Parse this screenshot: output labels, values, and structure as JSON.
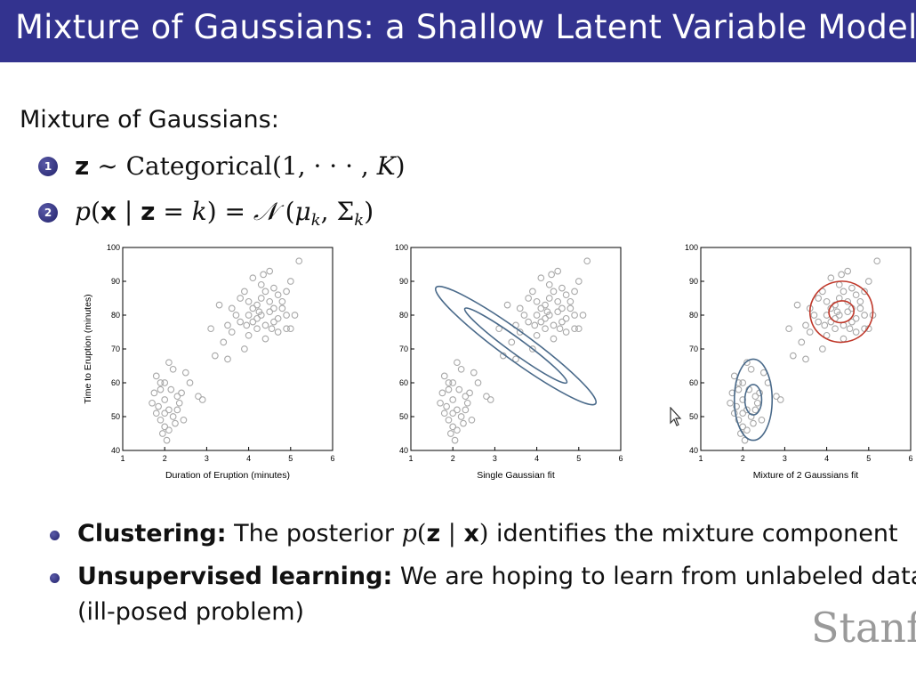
{
  "slide": {
    "title": "Mixture of Gaussians: a Shallow Latent Variable Model",
    "section_label": "Mixture of Gaussians:",
    "enum_items": [
      {
        "number": "1",
        "z": "z",
        "sim": " ∼ ",
        "text": "Categorical(1, · · · , ",
        "K": "K",
        "close": ")"
      },
      {
        "number": "2",
        "p": "p",
        "open": "(",
        "x": "x",
        "bar": " | ",
        "z": "z",
        "eq": " = ",
        "k": "k",
        "close1": ") = ",
        "N": "𝒩",
        "paren": " (",
        "mu": "μ",
        "sub_k1": "k",
        "comma": ", Σ",
        "sub_k2": "k",
        "close2": ")"
      }
    ],
    "bullets": [
      {
        "label": "Clustering:",
        "pre": " The posterior ",
        "p": "p",
        "open": "(",
        "z": "z",
        "bar": " | ",
        "x": "x",
        "close": ")",
        "post": " identifies the mixture component"
      },
      {
        "label": "Unsupervised learning:",
        "post": " We are hoping to learn from unlabeled data",
        "line2": "(ill-posed problem)"
      }
    ],
    "watermark": "Stanf",
    "colors": {
      "title_bar": "#33338f",
      "point": "#a8a8a8",
      "blue_ellipse": "#4a6a8a",
      "red_ellipse": "#c0392b"
    }
  },
  "chart_data": [
    {
      "type": "scatter",
      "xlabel": "Duration of Eruption (minutes)",
      "ylabel": "Time to Eruption (minutes)",
      "xlim": [
        1,
        6
      ],
      "ylim": [
        40,
        100
      ],
      "xticks": [
        "1",
        "2",
        "3",
        "4",
        "5",
        "6"
      ],
      "yticks": [
        "40",
        "50",
        "60",
        "70",
        "80",
        "90",
        "100"
      ],
      "grid": false,
      "points": [
        [
          1.8,
          62
        ],
        [
          1.9,
          58
        ],
        [
          2.0,
          55
        ],
        [
          2.1,
          52
        ],
        [
          1.8,
          51
        ],
        [
          2.2,
          50
        ],
        [
          1.9,
          49
        ],
        [
          2.0,
          47
        ],
        [
          2.1,
          46
        ],
        [
          1.7,
          54
        ],
        [
          2.3,
          56
        ],
        [
          2.0,
          60
        ],
        [
          1.85,
          53
        ],
        [
          2.15,
          58
        ],
        [
          2.25,
          48
        ],
        [
          2.4,
          57
        ],
        [
          1.95,
          45
        ],
        [
          2.05,
          43
        ],
        [
          2.3,
          52
        ],
        [
          1.75,
          57
        ],
        [
          2.6,
          60
        ],
        [
          2.5,
          63
        ],
        [
          2.2,
          64
        ],
        [
          2.1,
          66
        ],
        [
          2.35,
          54
        ],
        [
          2.8,
          56
        ],
        [
          2.9,
          55
        ],
        [
          2.45,
          49
        ],
        [
          2.0,
          51
        ],
        [
          1.9,
          60
        ],
        [
          3.2,
          68
        ],
        [
          3.4,
          72
        ],
        [
          3.5,
          67
        ],
        [
          3.6,
          75
        ],
        [
          3.1,
          76
        ],
        [
          3.3,
          83
        ],
        [
          3.7,
          80
        ],
        [
          3.8,
          78
        ],
        [
          3.9,
          70
        ],
        [
          4.0,
          74
        ],
        [
          4.1,
          82
        ],
        [
          4.2,
          79
        ],
        [
          4.3,
          85
        ],
        [
          4.4,
          77
        ],
        [
          4.5,
          81
        ],
        [
          4.6,
          88
        ],
        [
          4.7,
          79
        ],
        [
          4.8,
          84
        ],
        [
          4.9,
          76
        ],
        [
          5.0,
          90
        ],
        [
          4.1,
          91
        ],
        [
          4.3,
          89
        ],
        [
          4.5,
          93
        ],
        [
          4.7,
          86
        ],
        [
          3.9,
          87
        ],
        [
          4.0,
          84
        ],
        [
          4.2,
          76
        ],
        [
          4.4,
          73
        ],
        [
          4.6,
          78
        ],
        [
          4.8,
          82
        ],
        [
          5.1,
          80
        ],
        [
          5.2,
          96
        ],
        [
          4.9,
          87
        ],
        [
          4.5,
          84
        ],
        [
          4.3,
          80
        ],
        [
          4.1,
          78
        ],
        [
          3.8,
          85
        ],
        [
          4.6,
          82
        ],
        [
          4.4,
          87
        ],
        [
          4.2,
          83
        ],
        [
          4.0,
          80
        ],
        [
          3.6,
          82
        ],
        [
          3.5,
          77
        ],
        [
          4.7,
          75
        ],
        [
          4.9,
          80
        ],
        [
          5.0,
          76
        ],
        [
          4.25,
          81
        ],
        [
          4.55,
          76
        ],
        [
          4.35,
          92
        ],
        [
          3.95,
          77
        ]
      ],
      "ellipses": []
    },
    {
      "type": "scatter",
      "xlabel": "Single Gaussian fit",
      "ylabel": "",
      "xlim": [
        1,
        6
      ],
      "ylim": [
        40,
        100
      ],
      "xticks": [
        "1",
        "2",
        "3",
        "4",
        "5",
        "6"
      ],
      "yticks": [
        "40",
        "50",
        "60",
        "70",
        "80",
        "90",
        "100"
      ],
      "grid": false,
      "points": [
        [
          1.8,
          62
        ],
        [
          1.9,
          58
        ],
        [
          2.0,
          55
        ],
        [
          2.1,
          52
        ],
        [
          1.8,
          51
        ],
        [
          2.2,
          50
        ],
        [
          1.9,
          49
        ],
        [
          2.0,
          47
        ],
        [
          2.1,
          46
        ],
        [
          1.7,
          54
        ],
        [
          2.3,
          56
        ],
        [
          2.0,
          60
        ],
        [
          1.85,
          53
        ],
        [
          2.15,
          58
        ],
        [
          2.25,
          48
        ],
        [
          2.4,
          57
        ],
        [
          1.95,
          45
        ],
        [
          2.05,
          43
        ],
        [
          2.3,
          52
        ],
        [
          1.75,
          57
        ],
        [
          2.6,
          60
        ],
        [
          2.5,
          63
        ],
        [
          2.2,
          64
        ],
        [
          2.1,
          66
        ],
        [
          2.35,
          54
        ],
        [
          2.8,
          56
        ],
        [
          2.9,
          55
        ],
        [
          2.45,
          49
        ],
        [
          2.0,
          51
        ],
        [
          1.9,
          60
        ],
        [
          3.2,
          68
        ],
        [
          3.4,
          72
        ],
        [
          3.5,
          67
        ],
        [
          3.6,
          75
        ],
        [
          3.1,
          76
        ],
        [
          3.3,
          83
        ],
        [
          3.7,
          80
        ],
        [
          3.8,
          78
        ],
        [
          3.9,
          70
        ],
        [
          4.0,
          74
        ],
        [
          4.1,
          82
        ],
        [
          4.2,
          79
        ],
        [
          4.3,
          85
        ],
        [
          4.4,
          77
        ],
        [
          4.5,
          81
        ],
        [
          4.6,
          88
        ],
        [
          4.7,
          79
        ],
        [
          4.8,
          84
        ],
        [
          4.9,
          76
        ],
        [
          5.0,
          90
        ],
        [
          4.1,
          91
        ],
        [
          4.3,
          89
        ],
        [
          4.5,
          93
        ],
        [
          4.7,
          86
        ],
        [
          3.9,
          87
        ],
        [
          4.0,
          84
        ],
        [
          4.2,
          76
        ],
        [
          4.4,
          73
        ],
        [
          4.6,
          78
        ],
        [
          4.8,
          82
        ],
        [
          5.1,
          80
        ],
        [
          5.2,
          96
        ],
        [
          4.9,
          87
        ],
        [
          4.5,
          84
        ],
        [
          4.3,
          80
        ],
        [
          4.1,
          78
        ],
        [
          3.8,
          85
        ],
        [
          4.6,
          82
        ],
        [
          4.4,
          87
        ],
        [
          4.2,
          83
        ],
        [
          4.0,
          80
        ],
        [
          3.6,
          82
        ],
        [
          3.5,
          77
        ],
        [
          4.7,
          75
        ],
        [
          4.9,
          80
        ],
        [
          5.0,
          76
        ],
        [
          4.25,
          81
        ],
        [
          4.55,
          76
        ],
        [
          4.35,
          92
        ],
        [
          3.95,
          77
        ]
      ],
      "ellipses": [
        {
          "cx": 3.5,
          "cy": 71,
          "rx": 2.35,
          "ry": 4.2,
          "angle_deg": -36,
          "color": "blue"
        },
        {
          "cx": 3.5,
          "cy": 71,
          "rx": 1.5,
          "ry": 2.2,
          "angle_deg": -36,
          "color": "blue"
        }
      ]
    },
    {
      "type": "scatter",
      "xlabel": "Mixture of 2 Gaussians fit",
      "ylabel": "",
      "xlim": [
        1,
        6
      ],
      "ylim": [
        40,
        100
      ],
      "xticks": [
        "1",
        "2",
        "3",
        "4",
        "5",
        "6"
      ],
      "yticks": [
        "40",
        "50",
        "60",
        "70",
        "80",
        "90",
        "100"
      ],
      "grid": false,
      "points": [
        [
          1.8,
          62
        ],
        [
          1.9,
          58
        ],
        [
          2.0,
          55
        ],
        [
          2.1,
          52
        ],
        [
          1.8,
          51
        ],
        [
          2.2,
          50
        ],
        [
          1.9,
          49
        ],
        [
          2.0,
          47
        ],
        [
          2.1,
          46
        ],
        [
          1.7,
          54
        ],
        [
          2.3,
          56
        ],
        [
          2.0,
          60
        ],
        [
          1.85,
          53
        ],
        [
          2.15,
          58
        ],
        [
          2.25,
          48
        ],
        [
          2.4,
          57
        ],
        [
          1.95,
          45
        ],
        [
          2.05,
          43
        ],
        [
          2.3,
          52
        ],
        [
          1.75,
          57
        ],
        [
          2.6,
          60
        ],
        [
          2.5,
          63
        ],
        [
          2.2,
          64
        ],
        [
          2.1,
          66
        ],
        [
          2.35,
          54
        ],
        [
          2.8,
          56
        ],
        [
          2.9,
          55
        ],
        [
          2.45,
          49
        ],
        [
          2.0,
          51
        ],
        [
          1.9,
          60
        ],
        [
          3.2,
          68
        ],
        [
          3.4,
          72
        ],
        [
          3.5,
          67
        ],
        [
          3.6,
          75
        ],
        [
          3.1,
          76
        ],
        [
          3.3,
          83
        ],
        [
          3.7,
          80
        ],
        [
          3.8,
          78
        ],
        [
          3.9,
          70
        ],
        [
          4.0,
          74
        ],
        [
          4.1,
          82
        ],
        [
          4.2,
          79
        ],
        [
          4.3,
          85
        ],
        [
          4.4,
          77
        ],
        [
          4.5,
          81
        ],
        [
          4.6,
          88
        ],
        [
          4.7,
          79
        ],
        [
          4.8,
          84
        ],
        [
          4.9,
          76
        ],
        [
          5.0,
          90
        ],
        [
          4.1,
          91
        ],
        [
          4.3,
          89
        ],
        [
          4.5,
          93
        ],
        [
          4.7,
          86
        ],
        [
          3.9,
          87
        ],
        [
          4.0,
          84
        ],
        [
          4.2,
          76
        ],
        [
          4.4,
          73
        ],
        [
          4.6,
          78
        ],
        [
          4.8,
          82
        ],
        [
          5.1,
          80
        ],
        [
          5.2,
          96
        ],
        [
          4.9,
          87
        ],
        [
          4.5,
          84
        ],
        [
          4.3,
          80
        ],
        [
          4.1,
          78
        ],
        [
          3.8,
          85
        ],
        [
          4.6,
          82
        ],
        [
          4.4,
          87
        ],
        [
          4.2,
          83
        ],
        [
          4.0,
          80
        ],
        [
          3.6,
          82
        ],
        [
          3.5,
          77
        ],
        [
          4.7,
          75
        ],
        [
          4.9,
          80
        ],
        [
          5.0,
          76
        ],
        [
          4.25,
          81
        ],
        [
          4.55,
          76
        ],
        [
          4.35,
          92
        ],
        [
          3.95,
          77
        ]
      ],
      "ellipses": [
        {
          "cx": 2.25,
          "cy": 55,
          "rx": 0.45,
          "ry": 12,
          "angle_deg": 0,
          "color": "blue"
        },
        {
          "cx": 2.25,
          "cy": 55,
          "rx": 0.2,
          "ry": 4.5,
          "angle_deg": 0,
          "color": "blue"
        },
        {
          "cx": 4.35,
          "cy": 81,
          "rx": 0.75,
          "ry": 9,
          "angle_deg": 12,
          "color": "red"
        },
        {
          "cx": 4.35,
          "cy": 81,
          "rx": 0.3,
          "ry": 3.2,
          "angle_deg": 12,
          "color": "red"
        }
      ]
    }
  ]
}
